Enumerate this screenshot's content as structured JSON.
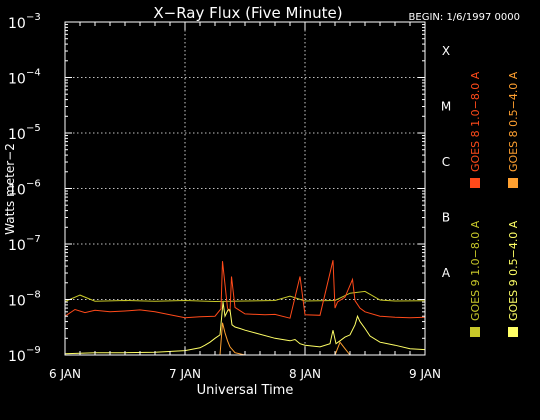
{
  "chart_data": {
    "type": "line",
    "title": "X−Ray Flux (Five Minute)",
    "begin_label": "BEGIN: 1/6/1997 0000",
    "ylabel": "Watts meter−2",
    "xlabel": "Universal Time",
    "yscale": "log",
    "ylim": [
      1e-09,
      0.001
    ],
    "xlim": [
      0,
      72
    ],
    "y_ticks": [
      {
        "mantissa": "10",
        "exp": "−3"
      },
      {
        "mantissa": "10",
        "exp": "−4"
      },
      {
        "mantissa": "10",
        "exp": "−5"
      },
      {
        "mantissa": "10",
        "exp": "−6"
      },
      {
        "mantissa": "10",
        "exp": "−7"
      },
      {
        "mantissa": "10",
        "exp": "−8"
      },
      {
        "mantissa": "10",
        "exp": "−9"
      }
    ],
    "x_ticks": [
      "6 JAN",
      "7 JAN",
      "8 JAN",
      "9 JAN"
    ],
    "x_tick_hours": [
      0,
      24,
      48,
      72
    ],
    "class_labels": [
      {
        "label": "X",
        "value": 0.0001
      },
      {
        "label": "M",
        "value": 1e-05
      },
      {
        "label": "C",
        "value": 1e-06
      },
      {
        "label": "B",
        "value": 1e-07
      },
      {
        "label": "A",
        "value": 1e-08
      }
    ],
    "grid": true,
    "legend": [
      {
        "label": "GOES 8 1.0−8.0 A",
        "color": "#ff4a1a"
      },
      {
        "label": "GOES 9 1.0−8.0 A",
        "color": "#c8c829"
      },
      {
        "label": "GOES 8 0.5−4.0 A",
        "color": "#ffa030"
      },
      {
        "label": "GOES 9 0.5−4.0 A",
        "color": "#ffff66"
      }
    ],
    "series": [
      {
        "name": "GOES 9 1.0−8.0 A",
        "color": "#c8c829",
        "x": [
          0,
          3,
          6,
          12,
          18,
          24,
          30,
          36,
          42,
          45,
          48,
          54,
          57,
          60,
          63,
          66,
          72
        ],
        "y": [
          9.2e-09,
          1.2e-08,
          9.3e-09,
          9.6e-09,
          9.3e-09,
          9.6e-09,
          9.2e-09,
          9.4e-09,
          9.6e-09,
          1.15e-08,
          9.4e-09,
          9.6e-09,
          1.3e-08,
          1.4e-08,
          9.8e-09,
          9.4e-09,
          9.5e-09
        ]
      },
      {
        "name": "GOES 8 1.0−8.0 A",
        "color": "#ff4a1a",
        "x": [
          0,
          2,
          4,
          6,
          9,
          12,
          15,
          18,
          21,
          24,
          27,
          30,
          31.2,
          31.5,
          32.5,
          33,
          33.3,
          34,
          36,
          40,
          42,
          45,
          47,
          48,
          51,
          53.6,
          54,
          54.5,
          56,
          57.5,
          58,
          59,
          60,
          63,
          66,
          69,
          72
        ],
        "y": [
          5e-09,
          6.6e-09,
          5.8e-09,
          6.4e-09,
          6e-09,
          6.2e-09,
          6.5e-09,
          6e-09,
          5.3e-09,
          4.7e-09,
          4.9e-09,
          5e-09,
          6.8e-09,
          4.9e-08,
          7e-09,
          6e-09,
          2.6e-08,
          7.2e-09,
          5.5e-09,
          5.3e-09,
          5.4e-09,
          4.6e-09,
          2.6e-08,
          5.3e-09,
          5.2e-09,
          5.1e-08,
          7e-09,
          9e-09,
          1.1e-08,
          2.3e-08,
          9.5e-09,
          7e-09,
          6e-09,
          5e-09,
          4.8e-09,
          4.7e-09,
          4.8e-09
        ]
      },
      {
        "name": "GOES 8 0.5−4.0 A",
        "color": "#ffa030",
        "x": [
          30,
          31,
          31.5,
          32,
          32.5,
          33,
          34,
          36,
          54,
          55,
          56,
          57
        ],
        "y": [
          1e-09,
          1e-09,
          3.8e-09,
          2.5e-09,
          1.8e-09,
          1.4e-09,
          1.1e-09,
          1e-09,
          1e-09,
          1.7e-09,
          1.3e-09,
          1e-09
        ]
      },
      {
        "name": "GOES 9 0.5−4.0 A",
        "color": "#ffff66",
        "x": [
          0,
          6,
          12,
          18,
          24,
          27,
          28,
          29,
          30,
          31,
          31.3,
          31.6,
          32,
          32.6,
          33,
          33.4,
          34,
          35,
          36,
          38,
          42,
          45,
          46,
          47,
          48,
          51,
          53,
          53.6,
          54.2,
          55,
          56,
          57,
          58,
          58.5,
          59,
          60,
          61,
          63,
          66,
          69,
          72
        ],
        "y": [
          1.05e-09,
          1.1e-09,
          1.1e-09,
          1.12e-09,
          1.2e-09,
          1.35e-09,
          1.5e-09,
          1.7e-09,
          2e-09,
          2.3e-09,
          4.5e-09,
          9e-09,
          5e-09,
          6.5e-09,
          6.5e-09,
          3.5e-09,
          3.2e-09,
          3e-09,
          2.8e-09,
          2.5e-09,
          2e-09,
          1.8e-09,
          1.9e-09,
          1.6e-09,
          1.5e-09,
          1.4e-09,
          1.6e-09,
          2.8e-09,
          1.6e-09,
          1.8e-09,
          2.1e-09,
          2.3e-09,
          3.5e-09,
          5e-09,
          4e-09,
          3e-09,
          2.2e-09,
          1.7e-09,
          1.5e-09,
          1.3e-09,
          1.25e-09
        ]
      }
    ]
  }
}
